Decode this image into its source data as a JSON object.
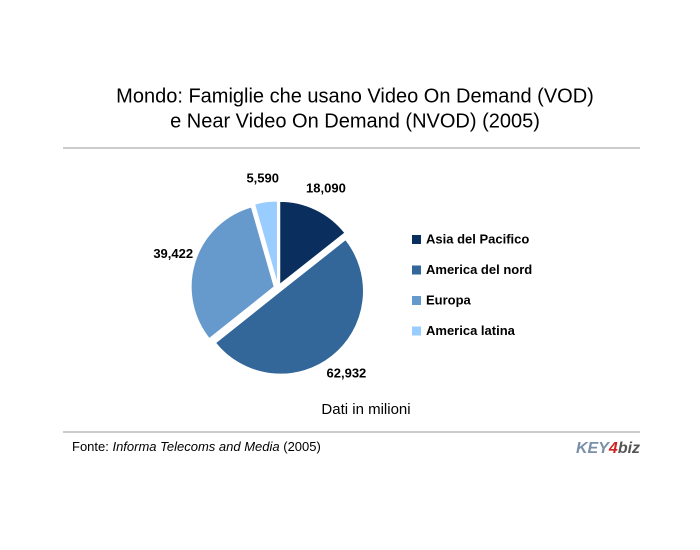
{
  "chart_data": {
    "type": "pie",
    "title": [
      "Mondo: Famiglie che usano Video On Demand (VOD)",
      "e Near Video On Demand (NVOD) (2005)"
    ],
    "categories": [
      "Asia del Pacifico",
      "America del nord",
      "Europa",
      "America latina"
    ],
    "values": [
      18090,
      62932,
      39422,
      5590
    ],
    "value_labels": [
      "18,090",
      "62,932",
      "39,422",
      "5,590"
    ],
    "colors": [
      "#0a2f5e",
      "#336699",
      "#6699cc",
      "#99ccff"
    ],
    "legend": "right",
    "note": "Dati in milioni",
    "source": [
      "Fonte: ",
      "Informa Telecoms and Media",
      " (2005)"
    ],
    "logo": [
      "KEY",
      "4",
      "biz"
    ]
  }
}
